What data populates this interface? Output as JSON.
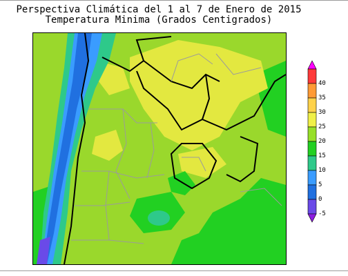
{
  "title": {
    "line1": "Perspectiva Climática del 1 al 7 de Enero de 2015",
    "line2": "Temperatura Minima (Grados Centigrados)"
  },
  "legend": {
    "labels": [
      "40",
      "35",
      "30",
      "25",
      "20",
      "15",
      "10",
      "5",
      "0",
      "-5"
    ],
    "colors": [
      "#ff00ff",
      "#ff3a3a",
      "#ff9a36",
      "#ffd24a",
      "#f0f048",
      "#97e028",
      "#22d022",
      "#2ec98a",
      "#3a9cff",
      "#2070e0",
      "#6a4ae8",
      "#8c1ce0"
    ]
  },
  "map": {
    "region": "Cono Sur de Sudamérica",
    "colors": {
      "warm_25": "#e3e840",
      "mild_20": "#9ad82c",
      "cool_15": "#22d022",
      "cold_10": "#2ec98a",
      "cold_5": "#3a9cff",
      "cold_0": "#2070e0",
      "cold_neg5": "#6a4ae8"
    }
  }
}
